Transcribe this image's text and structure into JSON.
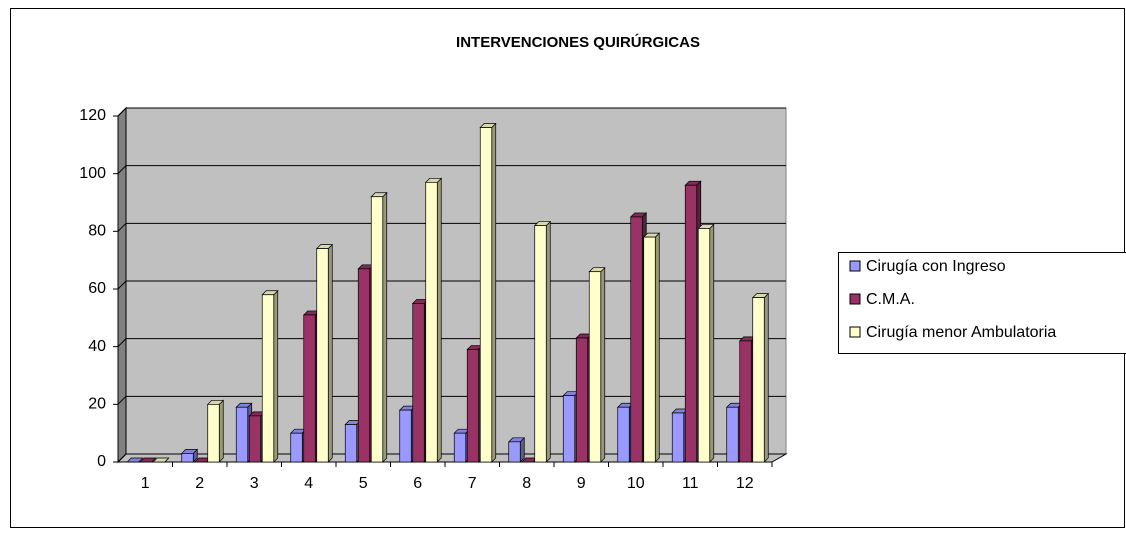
{
  "chart_data": {
    "type": "bar3d",
    "title": "INTERVENCIONES QUIRÚRGICAS",
    "categories": [
      "1",
      "2",
      "3",
      "4",
      "5",
      "6",
      "7",
      "8",
      "9",
      "10",
      "11",
      "12"
    ],
    "series": [
      {
        "name": "Cirugía con Ingreso",
        "color": "#9999ff",
        "values": [
          0,
          3,
          19,
          10,
          13,
          18,
          10,
          7,
          23,
          19,
          17,
          19
        ]
      },
      {
        "name": "C.M.A.",
        "color": "#993366",
        "values": [
          0,
          0,
          16,
          51,
          67,
          55,
          39,
          0,
          43,
          85,
          96,
          42
        ]
      },
      {
        "name": "Cirugía menor Ambulatoria",
        "color": "#ffffcc",
        "values": [
          0,
          20,
          58,
          74,
          92,
          97,
          116,
          82,
          66,
          78,
          81,
          57
        ]
      }
    ],
    "ylim": [
      0,
      120
    ],
    "yticks": [
      0,
      20,
      40,
      60,
      80,
      100,
      120
    ],
    "grid": true,
    "legend": "right"
  }
}
